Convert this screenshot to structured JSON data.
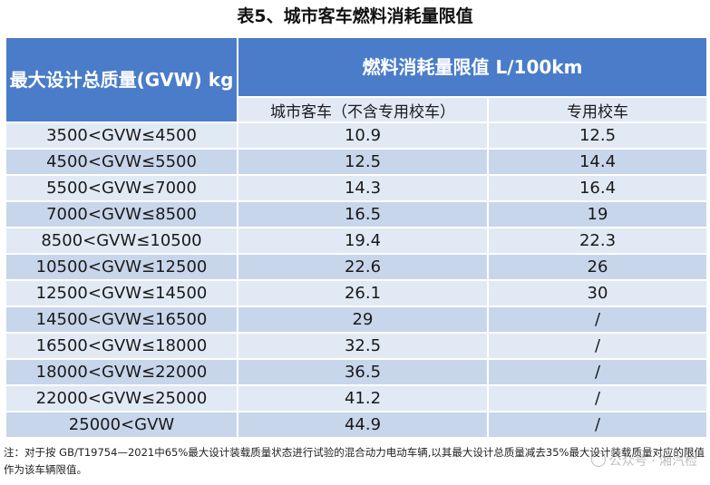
{
  "title": "表5、城市客车燃料消耗量限值",
  "header": {
    "col1": "最大设计总质量(GVW) kg",
    "group": "燃料消耗量限值 L/100km",
    "sub1": "城市客车（不含专用校车）",
    "sub2": "专用校车"
  },
  "rows": [
    {
      "range": "3500<GVW≤4500",
      "city": "10.9",
      "school": "12.5"
    },
    {
      "range": "4500<GVW≤5500",
      "city": "12.5",
      "school": "14.4"
    },
    {
      "range": "5500<GVW≤7000",
      "city": "14.3",
      "school": "16.4"
    },
    {
      "range": "7000<GVW≤8500",
      "city": "16.5",
      "school": "19"
    },
    {
      "range": "8500<GVW≤10500",
      "city": "19.4",
      "school": "22.3"
    },
    {
      "range": "10500<GVW≤12500",
      "city": "22.6",
      "school": "26"
    },
    {
      "range": "12500<GVW≤14500",
      "city": "26.1",
      "school": "30"
    },
    {
      "range": "14500<GVW≤16500",
      "city": "29",
      "school": "/"
    },
    {
      "range": "16500<GVW≤18000",
      "city": "32.5",
      "school": "/"
    },
    {
      "range": "18000<GVW≤22000",
      "city": "36.5",
      "school": "/"
    },
    {
      "range": "22000<GVW≤25000",
      "city": "41.2",
      "school": "/"
    },
    {
      "range": "25000<GVW",
      "city": "44.9",
      "school": "/"
    }
  ],
  "note": "注：对于按 GB/T19754—2021中65%最大设计装载质量状态进行试验的混合动力电动车辆,以其最大设计总质量减去35%最大设计装载质量对应的限值作为该车辆限值。",
  "watermark": "公众号 · 湘汽检",
  "colors": {
    "header_bg": "#4a7cc9",
    "row_light": "#e1e9f4",
    "row_dark": "#c8d6ec"
  }
}
